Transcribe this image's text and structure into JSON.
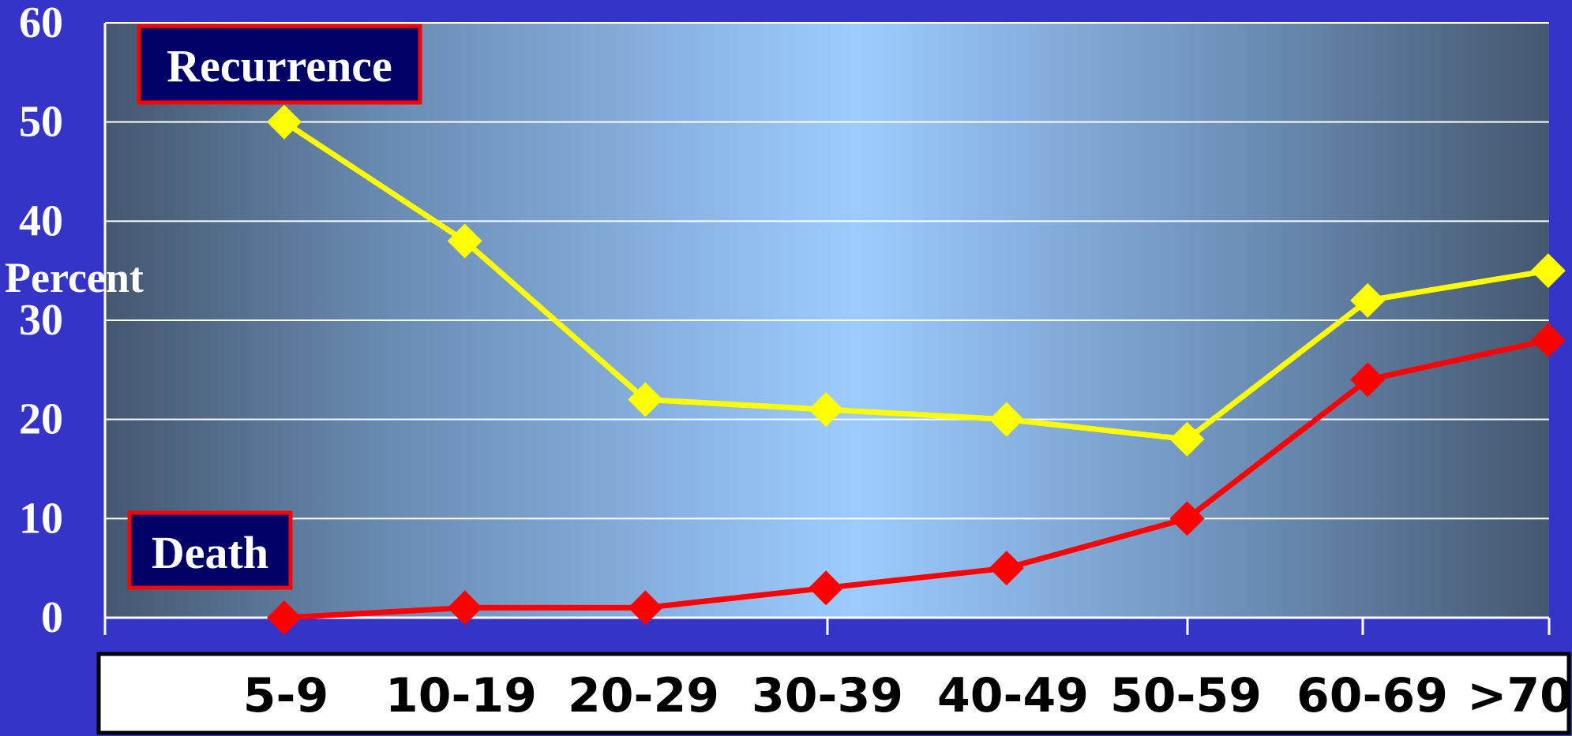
{
  "chart_data": {
    "type": "line",
    "ylabel": "Percent",
    "ylim": [
      0,
      60
    ],
    "yticks": [
      "0",
      "10",
      "20",
      "30",
      "40",
      "50",
      "60"
    ],
    "categories": [
      "5-9",
      "10-19",
      "20-29",
      "30-39",
      "40-49",
      "50-59",
      "60-69",
      ">70"
    ],
    "grid": true,
    "series": [
      {
        "name": "Recurrence",
        "color": "#ffff00",
        "values": [
          50,
          38,
          22,
          21,
          20,
          18,
          32,
          35
        ]
      },
      {
        "name": "Death",
        "color": "#ff0000",
        "values": [
          0,
          1,
          1,
          3,
          5,
          10,
          24,
          28
        ]
      }
    ]
  },
  "colors": {
    "page_background": "#3434c8",
    "plot_edge": "#44586f",
    "plot_center": "#9cccff",
    "label_box_fill": "#000066",
    "label_box_border": "#ff0000",
    "axis_strip_fill": "#ffffff"
  }
}
